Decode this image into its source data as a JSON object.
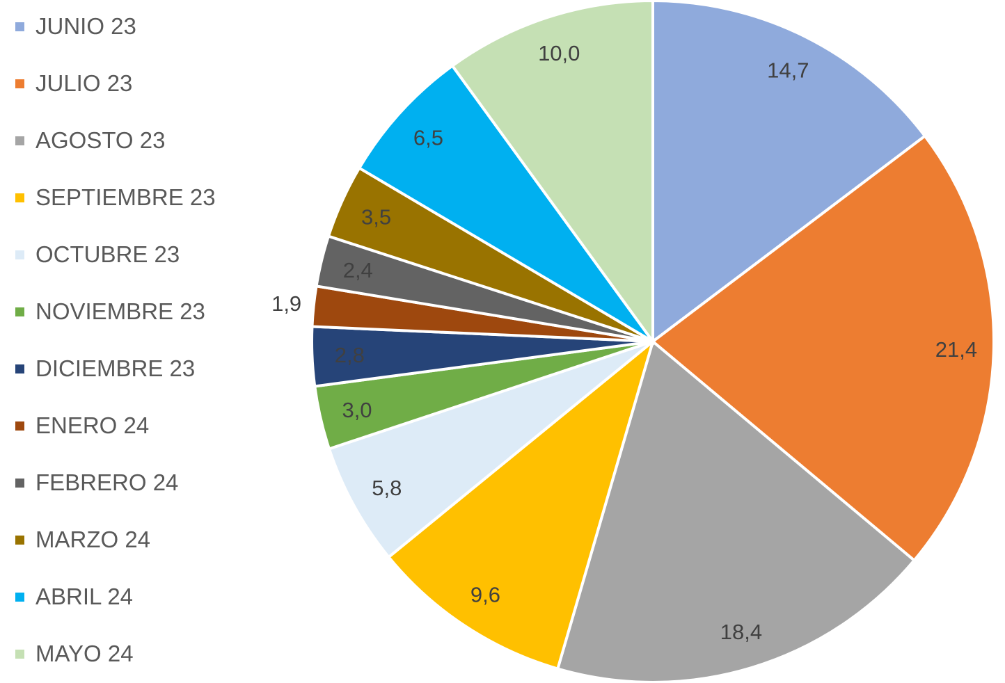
{
  "chart_data": {
    "type": "pie",
    "title": "",
    "legend_position": "left",
    "start_angle": "top, clockwise",
    "categories": [
      "JUNIO 23",
      "JULIO 23",
      "AGOSTO 23",
      "SEPTIEMBRE 23",
      "OCTUBRE 23",
      "NOVIEMBRE 23",
      "DICIEMBRE 23",
      "ENERO 24",
      "FEBRERO 24",
      "MARZO 24",
      "ABRIL 24",
      "MAYO 24"
    ],
    "values": [
      14.7,
      21.4,
      18.4,
      9.6,
      5.8,
      3.0,
      2.8,
      1.9,
      2.4,
      3.5,
      6.5,
      10.0
    ],
    "value_labels": [
      "14,7",
      "21,4",
      "18,4",
      "9,6",
      "5,8",
      "3,0",
      "2,8",
      "1,9",
      "2,4",
      "3,5",
      "6,5",
      "10,0"
    ],
    "colors": [
      "#8FAADC",
      "#ED7D31",
      "#A5A5A5",
      "#FFC000",
      "#DDEBF7",
      "#70AD47",
      "#264478",
      "#9E480E",
      "#636363",
      "#997300",
      "#00B0F0",
      "#C5E0B4"
    ]
  }
}
